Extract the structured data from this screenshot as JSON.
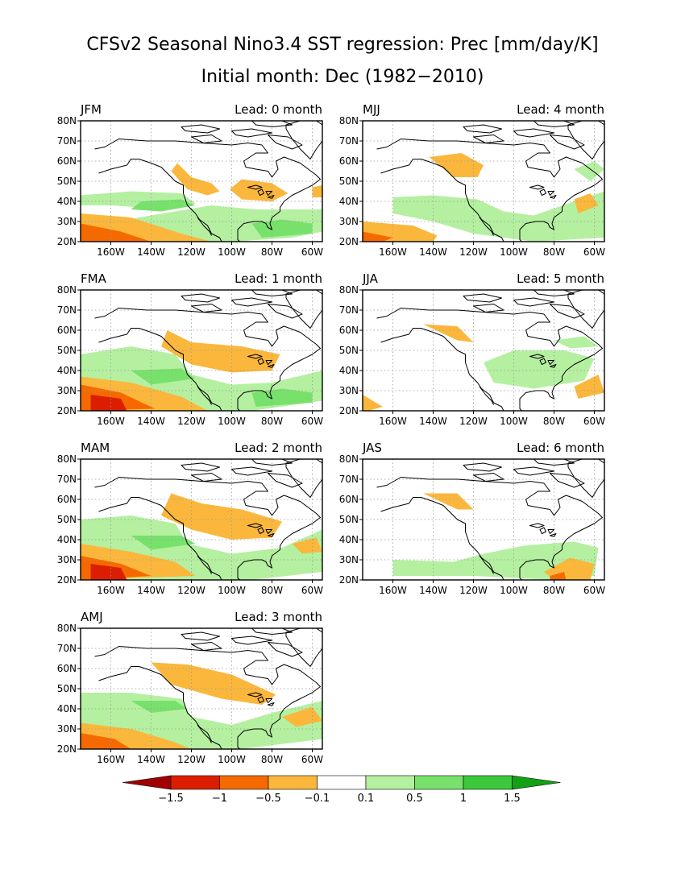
{
  "title": "CFSv2 Seasonal Nino3.4 SST regression: Prec [mm/day/K]",
  "subtitle": "Initial month: Dec (1982−2010)",
  "longitude_labels": [
    "160W",
    "140W",
    "120W",
    "100W",
    "80W",
    "60W"
  ],
  "latitude_labels": [
    "20N",
    "30N",
    "40N",
    "50N",
    "60N",
    "70N",
    "80N"
  ],
  "panels": [
    {
      "season": "JFM",
      "lead": "Lead: 0 month"
    },
    {
      "season": "FMA",
      "lead": "Lead: 1 month"
    },
    {
      "season": "MAM",
      "lead": "Lead: 2 month"
    },
    {
      "season": "AMJ",
      "lead": "Lead: 3 month"
    },
    {
      "season": "MJJ",
      "lead": "Lead: 4 month"
    },
    {
      "season": "JJA",
      "lead": "Lead: 5 month"
    },
    {
      "season": "JAS",
      "lead": "Lead: 6 month"
    }
  ],
  "colorbar": {
    "labels": [
      "−1.5",
      "−1",
      "−0.5",
      "−0.1",
      "0.1",
      "0.5",
      "1",
      "1.5"
    ],
    "colors": [
      "#a00000",
      "#dc1e00",
      "#f56a00",
      "#fbb73c",
      "#ffffff",
      "#b4f0a0",
      "#78e16c",
      "#3cc83c",
      "#14a014"
    ]
  },
  "colors": {
    "dry_light": "#fbb73c",
    "dry_medium": "#f56a00",
    "dry_strong": "#dc1e00",
    "dry_extreme": "#a00000",
    "wet_light": "#b4f0a0",
    "wet_medium": "#78e16c",
    "wet_strong": "#3cc83c"
  }
}
